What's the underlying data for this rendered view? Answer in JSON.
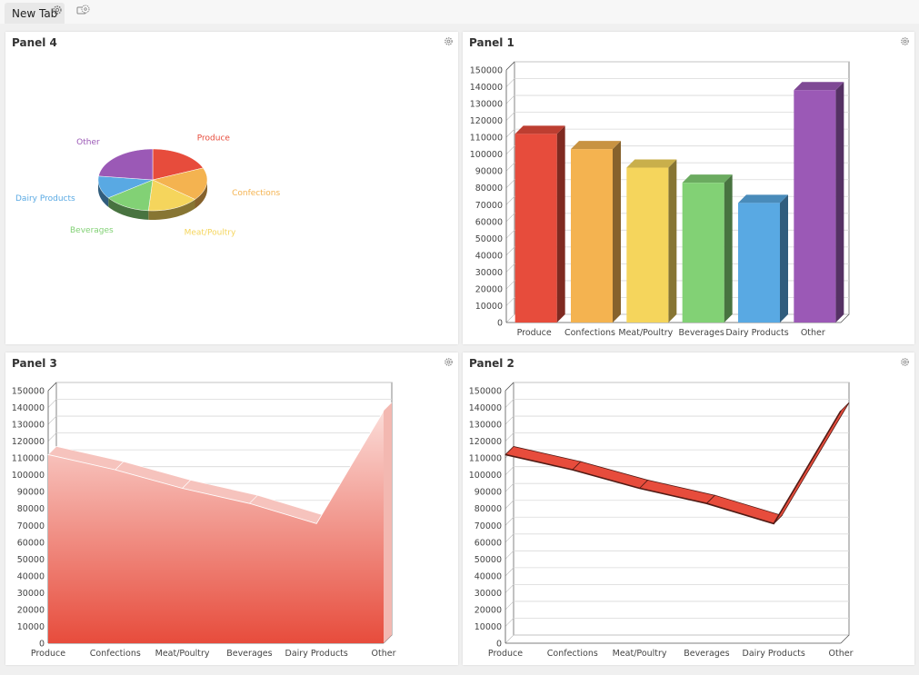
{
  "tab": {
    "label": "New Tab"
  },
  "panels": [
    {
      "title": "Panel 4"
    },
    {
      "title": "Panel 1"
    },
    {
      "title": "Panel 3"
    },
    {
      "title": "Panel 2"
    }
  ],
  "colors": {
    "produce": "#e74c3c",
    "confections": "#f4b350",
    "meat_poultry": "#f5d55c",
    "beverages": "#82d175",
    "dairy_products": "#59a9e3",
    "other": "#9b59b6"
  },
  "chart_data": [
    {
      "type": "pie",
      "categories": [
        "Produce",
        "Confections",
        "Meat/Poultry",
        "Beverages",
        "Dairy Products",
        "Other"
      ],
      "values": [
        112000,
        103000,
        92000,
        83000,
        71000,
        138000
      ]
    },
    {
      "type": "bar",
      "categories": [
        "Produce",
        "Confections",
        "Meat/Poultry",
        "Beverages",
        "Dairy Products",
        "Other"
      ],
      "values": [
        112000,
        103000,
        92000,
        83000,
        71000,
        138000
      ],
      "ylim": [
        0,
        150000
      ],
      "yticks": [
        0,
        10000,
        20000,
        30000,
        40000,
        50000,
        60000,
        70000,
        80000,
        90000,
        100000,
        110000,
        120000,
        130000,
        140000,
        150000
      ]
    },
    {
      "type": "area",
      "categories": [
        "Produce",
        "Confections",
        "Meat/Poultry",
        "Beverages",
        "Dairy Products",
        "Other"
      ],
      "values": [
        112000,
        103000,
        92000,
        83000,
        71000,
        138000
      ],
      "ylim": [
        0,
        150000
      ],
      "yticks": [
        0,
        10000,
        20000,
        30000,
        40000,
        50000,
        60000,
        70000,
        80000,
        90000,
        100000,
        110000,
        120000,
        130000,
        140000,
        150000
      ]
    },
    {
      "type": "line",
      "categories": [
        "Produce",
        "Confections",
        "Meat/Poultry",
        "Beverages",
        "Dairy Products",
        "Other"
      ],
      "values": [
        112000,
        103000,
        92000,
        83000,
        71000,
        138000
      ],
      "ylim": [
        0,
        150000
      ],
      "yticks": [
        0,
        10000,
        20000,
        30000,
        40000,
        50000,
        60000,
        70000,
        80000,
        90000,
        100000,
        110000,
        120000,
        130000,
        140000,
        150000
      ]
    }
  ]
}
